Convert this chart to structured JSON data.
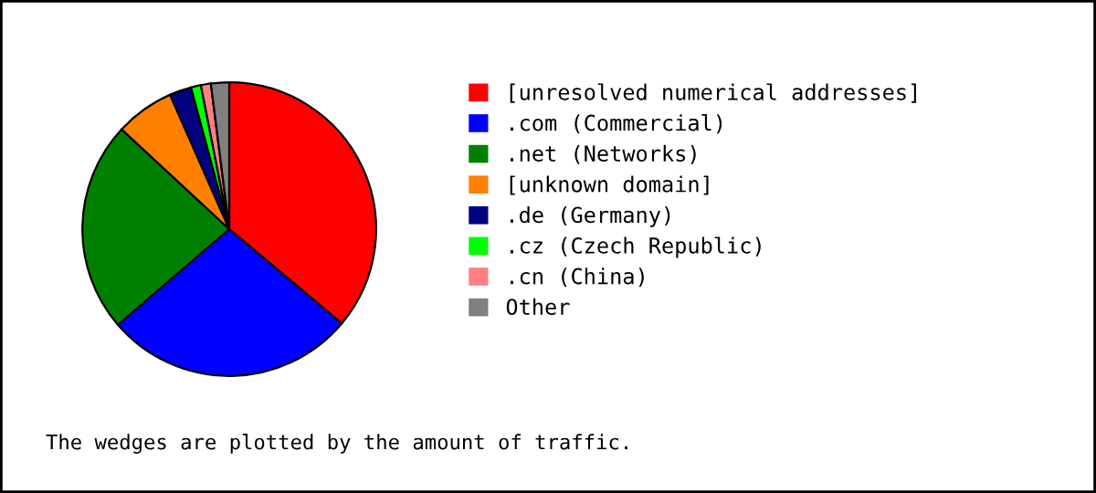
{
  "chart_data": {
    "type": "pie",
    "categories": [
      "[unresolved numerical addresses]",
      ".com (Commercial)",
      ".net (Networks)",
      "[unknown domain]",
      ".de (Germany)",
      ".cz (Czech Republic)",
      ".cn (China)",
      "Other"
    ],
    "values": [
      36.1,
      27.6,
      23.2,
      6.5,
      2.4,
      1.1,
      1.1,
      2.0
    ],
    "colors": [
      "#ff0000",
      "#0000ff",
      "#008000",
      "#ff8000",
      "#000080",
      "#00ff00",
      "#ff8080",
      "#808080"
    ],
    "legend": "right",
    "annotations": [
      "The wedges are plotted by the amount of traffic."
    ]
  }
}
